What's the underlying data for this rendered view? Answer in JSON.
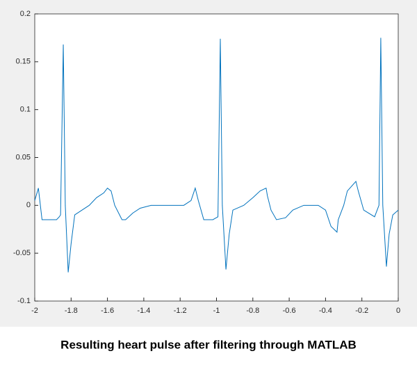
{
  "chart_data": {
    "type": "line",
    "caption": "Resulting heart pulse after filtering through MATLAB",
    "xlim": [
      -2,
      0
    ],
    "xticks": [
      -2,
      -1.8,
      -1.6,
      -1.4,
      -1.2,
      -1,
      -0.8,
      -0.6,
      -0.4,
      -0.2,
      0
    ],
    "ylim": [
      -0.1,
      0.2
    ],
    "yticks": [
      -0.1,
      -0.05,
      0,
      0.05,
      0.1,
      0.15,
      0.2
    ],
    "grid": false,
    "series": [
      {
        "color": "#0072bd",
        "x": [
          -2,
          -1.98,
          -1.96,
          -1.92,
          -1.88,
          -1.865,
          -1.858,
          -1.843,
          -1.832,
          -1.816,
          -1.8,
          -1.78,
          -1.74,
          -1.7,
          -1.66,
          -1.62,
          -1.6,
          -1.58,
          -1.56,
          -1.52,
          -1.5,
          -1.46,
          -1.42,
          -1.36,
          -1.3,
          -1.24,
          -1.18,
          -1.14,
          -1.117,
          -1.1,
          -1.07,
          -1.02,
          -0.992,
          -0.979,
          -0.968,
          -0.948,
          -0.93,
          -0.91,
          -0.85,
          -0.8,
          -0.76,
          -0.727,
          -0.72,
          -0.7,
          -0.67,
          -0.62,
          -0.58,
          -0.52,
          -0.44,
          -0.4,
          -0.37,
          -0.337,
          -0.33,
          -0.3,
          -0.28,
          -0.233,
          -0.22,
          -0.19,
          -0.13,
          -0.106,
          -0.096,
          -0.085,
          -0.065,
          -0.05,
          -0.03,
          0
        ],
        "values": [
          0.005,
          0.018,
          -0.015,
          -0.015,
          -0.015,
          -0.012,
          -0.01,
          0.168,
          0.0,
          -0.07,
          -0.04,
          -0.01,
          -0.005,
          0.0,
          0.008,
          0.013,
          0.018,
          0.015,
          0.0,
          -0.015,
          -0.015,
          -0.008,
          -0.003,
          0.0,
          0.0,
          0.0,
          0.0,
          0.005,
          0.018,
          0.005,
          -0.015,
          -0.015,
          -0.012,
          0.174,
          0.0,
          -0.067,
          -0.03,
          -0.005,
          0.0,
          0.008,
          0.015,
          0.018,
          0.01,
          -0.005,
          -0.015,
          -0.013,
          -0.005,
          0.0,
          0.0,
          -0.005,
          -0.022,
          -0.028,
          -0.015,
          0.0,
          0.015,
          0.025,
          0.015,
          -0.005,
          -0.012,
          0.0,
          0.175,
          0.0,
          -0.064,
          -0.03,
          -0.01,
          -0.005
        ]
      }
    ]
  }
}
